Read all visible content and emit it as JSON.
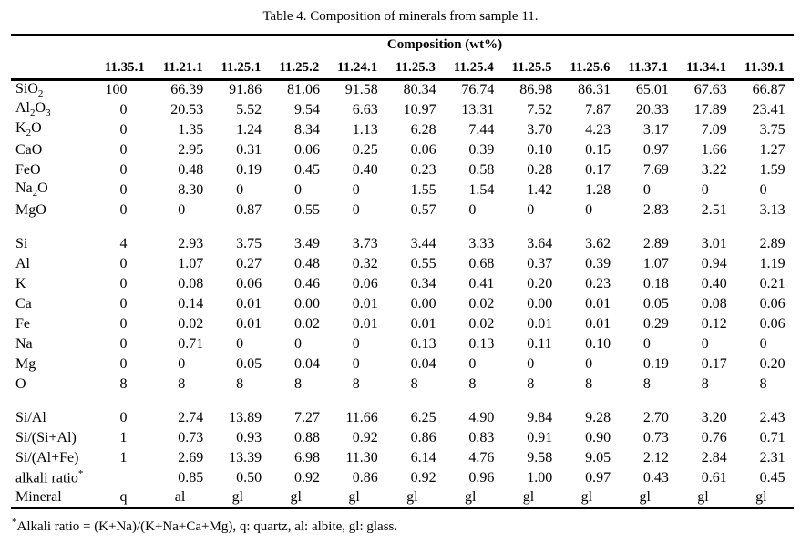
{
  "title": "Table 4. Composition of minerals from sample 11.",
  "table": {
    "group_header": "Composition (wt%)",
    "columns": [
      "11.35.1",
      "11.21.1",
      "11.25.1",
      "11.25.2",
      "11.24.1",
      "11.25.3",
      "11.25.4",
      "11.25.5",
      "11.25.6",
      "11.37.1",
      "11.34.1",
      "11.39.1"
    ],
    "sections": [
      {
        "name": "oxides",
        "rows": [
          {
            "label": [
              {
                "text": "SiO"
              },
              {
                "text": "2",
                "sub": true
              }
            ],
            "values": [
              "100",
              "66.39",
              "91.86",
              "81.06",
              "91.58",
              "80.34",
              "76.74",
              "86.98",
              "86.31",
              "65.01",
              "67.63",
              "66.87"
            ]
          },
          {
            "label": [
              {
                "text": "Al"
              },
              {
                "text": "2",
                "sub": true
              },
              {
                "text": "O"
              },
              {
                "text": "3",
                "sub": true
              }
            ],
            "values": [
              "0",
              "20.53",
              "5.52",
              "9.54",
              "6.63",
              "10.97",
              "13.31",
              "7.52",
              "7.87",
              "20.33",
              "17.89",
              "23.41"
            ]
          },
          {
            "label": [
              {
                "text": "K"
              },
              {
                "text": "2",
                "sub": true
              },
              {
                "text": "O"
              }
            ],
            "values": [
              "0",
              "1.35",
              "1.24",
              "8.34",
              "1.13",
              "6.28",
              "7.44",
              "3.70",
              "4.23",
              "3.17",
              "7.09",
              "3.75"
            ]
          },
          {
            "label": [
              {
                "text": "CaO"
              }
            ],
            "values": [
              "0",
              "2.95",
              "0.31",
              "0.06",
              "0.25",
              "0.06",
              "0.39",
              "0.10",
              "0.15",
              "0.97",
              "1.66",
              "1.27"
            ]
          },
          {
            "label": [
              {
                "text": "FeO"
              }
            ],
            "values": [
              "0",
              "0.48",
              "0.19",
              "0.45",
              "0.40",
              "0.23",
              "0.58",
              "0.28",
              "0.17",
              "7.69",
              "3.22",
              "1.59"
            ]
          },
          {
            "label": [
              {
                "text": "Na"
              },
              {
                "text": "2",
                "sub": true
              },
              {
                "text": "O"
              }
            ],
            "values": [
              "0",
              "8.30",
              "0",
              "0",
              "0",
              "1.55",
              "1.54",
              "1.42",
              "1.28",
              "0",
              "0",
              "0"
            ]
          },
          {
            "label": [
              {
                "text": "MgO"
              }
            ],
            "values": [
              "0",
              "0",
              "0.87",
              "0.55",
              "0",
              "0.57",
              "0",
              "0",
              "0",
              "2.83",
              "2.51",
              "3.13"
            ]
          }
        ]
      },
      {
        "name": "cations",
        "rows": [
          {
            "label": [
              {
                "text": "Si"
              }
            ],
            "values": [
              "4",
              "2.93",
              "3.75",
              "3.49",
              "3.73",
              "3.44",
              "3.33",
              "3.64",
              "3.62",
              "2.89",
              "3.01",
              "2.89"
            ]
          },
          {
            "label": [
              {
                "text": "Al"
              }
            ],
            "values": [
              "0",
              "1.07",
              "0.27",
              "0.48",
              "0.32",
              "0.55",
              "0.68",
              "0.37",
              "0.39",
              "1.07",
              "0.94",
              "1.19"
            ]
          },
          {
            "label": [
              {
                "text": "K"
              }
            ],
            "values": [
              "0",
              "0.08",
              "0.06",
              "0.46",
              "0.06",
              "0.34",
              "0.41",
              "0.20",
              "0.23",
              "0.18",
              "0.40",
              "0.21"
            ]
          },
          {
            "label": [
              {
                "text": "Ca"
              }
            ],
            "values": [
              "0",
              "0.14",
              "0.01",
              "0.00",
              "0.01",
              "0.00",
              "0.02",
              "0.00",
              "0.01",
              "0.05",
              "0.08",
              "0.06"
            ]
          },
          {
            "label": [
              {
                "text": "Fe"
              }
            ],
            "values": [
              "0",
              "0.02",
              "0.01",
              "0.02",
              "0.01",
              "0.01",
              "0.02",
              "0.01",
              "0.01",
              "0.29",
              "0.12",
              "0.06"
            ]
          },
          {
            "label": [
              {
                "text": "Na"
              }
            ],
            "values": [
              "0",
              "0.71",
              "0",
              "0",
              "0",
              "0.13",
              "0.13",
              "0.11",
              "0.10",
              "0",
              "0",
              "0"
            ]
          },
          {
            "label": [
              {
                "text": "Mg"
              }
            ],
            "values": [
              "0",
              "0",
              "0.05",
              "0.04",
              "0",
              "0.04",
              "0",
              "0",
              "0",
              "0.19",
              "0.17",
              "0.20"
            ]
          },
          {
            "label": [
              {
                "text": "O"
              }
            ],
            "values": [
              "8",
              "8",
              "8",
              "8",
              "8",
              "8",
              "8",
              "8",
              "8",
              "8",
              "8",
              "8"
            ]
          }
        ]
      },
      {
        "name": "ratios",
        "rows": [
          {
            "label": [
              {
                "text": "Si/Al"
              }
            ],
            "values": [
              "0",
              "2.74",
              "13.89",
              "7.27",
              "11.66",
              "6.25",
              "4.90",
              "9.84",
              "9.28",
              "2.70",
              "3.20",
              "2.43"
            ]
          },
          {
            "label": [
              {
                "text": "Si/(Si+Al)"
              }
            ],
            "values": [
              "1",
              "0.73",
              "0.93",
              "0.88",
              "0.92",
              "0.86",
              "0.83",
              "0.91",
              "0.90",
              "0.73",
              "0.76",
              "0.71"
            ]
          },
          {
            "label": [
              {
                "text": "Si/(Al+Fe)"
              }
            ],
            "values": [
              "1",
              "2.69",
              "13.39",
              "6.98",
              "11.30",
              "6.14",
              "4.76",
              "9.58",
              "9.05",
              "2.12",
              "2.84",
              "2.31"
            ]
          },
          {
            "label": [
              {
                "text": "alkali ratio"
              },
              {
                "text": "*",
                "sup": true
              }
            ],
            "values": [
              "",
              "0.85",
              "0.50",
              "0.92",
              "0.86",
              "0.92",
              "0.96",
              "1.00",
              "0.97",
              "0.43",
              "0.61",
              "0.45"
            ]
          },
          {
            "label": [
              {
                "text": "Mineral"
              }
            ],
            "values": [
              "q",
              "al",
              "gl",
              "gl",
              "gl",
              "gl",
              "gl",
              "gl",
              "gl",
              "gl",
              "gl",
              "gl"
            ]
          }
        ]
      }
    ]
  },
  "footnote": {
    "parts": [
      {
        "text": "*",
        "sup": true
      },
      {
        "text": "Alkali ratio = (K+Na)/(K+Na+Ca+Mg), q: quartz, al: albite, gl: glass."
      }
    ]
  }
}
